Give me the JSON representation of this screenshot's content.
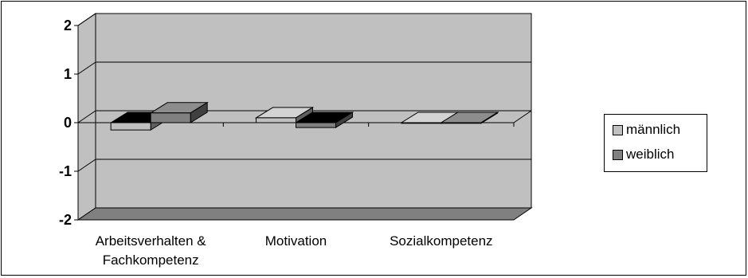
{
  "chart_data": {
    "type": "bar",
    "categories": [
      "Arbeitsverhalten & Fachkompetenz",
      "Motivation",
      "Sozialkompetenz"
    ],
    "category_lines": [
      [
        "Arbeitsverhalten &",
        "Fachkompetenz"
      ],
      [
        "Motivation"
      ],
      [
        "Sozialkompetenz"
      ]
    ],
    "series": [
      {
        "name": "männlich",
        "values": [
          -0.15,
          0.1,
          0.0
        ],
        "color": "#c0c0c0"
      },
      {
        "name": "weiblich",
        "values": [
          0.2,
          -0.1,
          0.0
        ],
        "color": "#808080"
      }
    ],
    "ylim": [
      -2,
      2
    ],
    "yticks": [
      "2",
      "1",
      "0",
      "-1",
      "-2"
    ],
    "grid": true,
    "style": "3d-clustered-bar",
    "legend_position": "right",
    "wall_color": "#c0c0c0",
    "floor_color": "#808080"
  }
}
